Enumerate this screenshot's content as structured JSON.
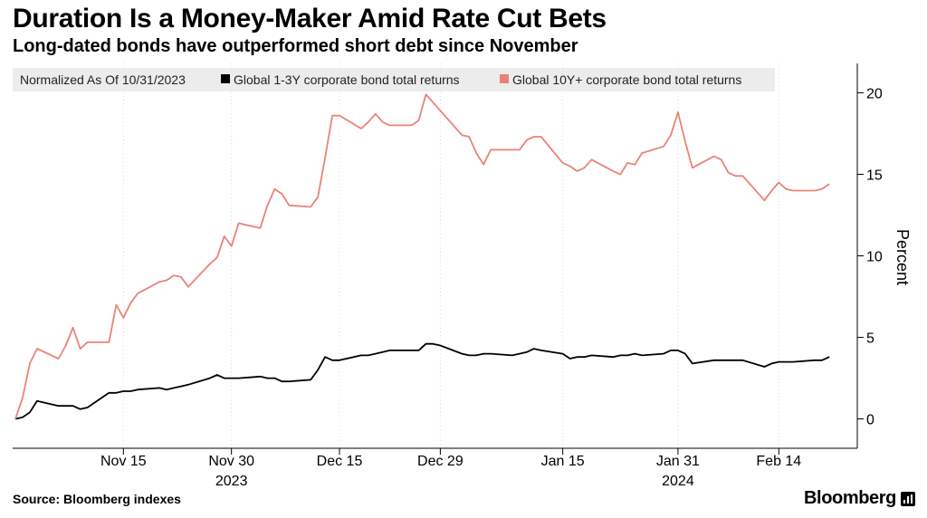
{
  "title": "Duration Is a Money-Maker Amid Rate Cut Bets",
  "subtitle": "Long-dated bonds have outperformed short debt since November",
  "source": "Source: Bloomberg indexes",
  "brand": "Bloomberg",
  "chart_data": {
    "type": "line",
    "legend": {
      "note": "Normalized As Of 10/31/2023",
      "placement": "top-left"
    },
    "ylabel": "Percent",
    "ylim": [
      -1.8,
      21.8
    ],
    "yticks": [
      0,
      5,
      10,
      15,
      20
    ],
    "ytick_labels": [
      "0",
      "5",
      "10",
      "15",
      "20"
    ],
    "x_start": "2023-10-31",
    "x_end": "2024-02-23",
    "xticks": [
      {
        "date": "2023-11-15",
        "label": "Nov 15",
        "sublabel": ""
      },
      {
        "date": "2023-11-30",
        "label": "Nov 30",
        "sublabel": "2023"
      },
      {
        "date": "2023-12-15",
        "label": "Dec 15",
        "sublabel": ""
      },
      {
        "date": "2023-12-29",
        "label": "Dec 29",
        "sublabel": ""
      },
      {
        "date": "2024-01-15",
        "label": "Jan 15",
        "sublabel": ""
      },
      {
        "date": "2024-01-31",
        "label": "Jan 31",
        "sublabel": "2024"
      },
      {
        "date": "2024-02-14",
        "label": "Feb 14",
        "sublabel": ""
      }
    ],
    "grid": "vertical dotted",
    "x": [
      "2023-10-31",
      "2023-11-01",
      "2023-11-02",
      "2023-11-03",
      "2023-11-06",
      "2023-11-07",
      "2023-11-08",
      "2023-11-09",
      "2023-11-10",
      "2023-11-13",
      "2023-11-14",
      "2023-11-15",
      "2023-11-16",
      "2023-11-17",
      "2023-11-20",
      "2023-11-21",
      "2023-11-22",
      "2023-11-23",
      "2023-11-24",
      "2023-11-27",
      "2023-11-28",
      "2023-11-29",
      "2023-11-30",
      "2023-12-01",
      "2023-12-04",
      "2023-12-05",
      "2023-12-06",
      "2023-12-07",
      "2023-12-08",
      "2023-12-11",
      "2023-12-12",
      "2023-12-13",
      "2023-12-14",
      "2023-12-15",
      "2023-12-18",
      "2023-12-19",
      "2023-12-20",
      "2023-12-21",
      "2023-12-22",
      "2023-12-25",
      "2023-12-26",
      "2023-12-27",
      "2023-12-28",
      "2023-12-29",
      "2024-01-01",
      "2024-01-02",
      "2024-01-03",
      "2024-01-04",
      "2024-01-05",
      "2024-01-08",
      "2024-01-09",
      "2024-01-10",
      "2024-01-11",
      "2024-01-12",
      "2024-01-15",
      "2024-01-16",
      "2024-01-17",
      "2024-01-18",
      "2024-01-19",
      "2024-01-22",
      "2024-01-23",
      "2024-01-24",
      "2024-01-25",
      "2024-01-26",
      "2024-01-29",
      "2024-01-30",
      "2024-01-31",
      "2024-02-01",
      "2024-02-02",
      "2024-02-05",
      "2024-02-06",
      "2024-02-07",
      "2024-02-08",
      "2024-02-09",
      "2024-02-12",
      "2024-02-13",
      "2024-02-14",
      "2024-02-15",
      "2024-02-16",
      "2024-02-19",
      "2024-02-20",
      "2024-02-21"
    ],
    "series": [
      {
        "name": "Global 1-3Y corporate bond total returns",
        "color": "#000000",
        "values": [
          0.0,
          0.1,
          0.4,
          1.1,
          0.8,
          0.8,
          0.8,
          0.6,
          0.7,
          1.6,
          1.6,
          1.7,
          1.7,
          1.8,
          1.9,
          1.8,
          1.9,
          2.0,
          2.1,
          2.5,
          2.7,
          2.5,
          2.5,
          2.5,
          2.6,
          2.5,
          2.5,
          2.3,
          2.3,
          2.4,
          3.0,
          3.8,
          3.6,
          3.6,
          3.9,
          3.9,
          4.0,
          4.1,
          4.2,
          4.2,
          4.2,
          4.6,
          4.6,
          4.5,
          4.0,
          3.9,
          3.9,
          4.0,
          4.0,
          3.9,
          4.0,
          4.1,
          4.3,
          4.2,
          4.0,
          3.7,
          3.8,
          3.8,
          3.9,
          3.8,
          3.9,
          3.9,
          4.0,
          3.9,
          4.0,
          4.2,
          4.2,
          4.0,
          3.4,
          3.6,
          3.6,
          3.6,
          3.6,
          3.6,
          3.2,
          3.4,
          3.5,
          3.5,
          3.5,
          3.6,
          3.6,
          3.8
        ]
      },
      {
        "name": "Global 10Y+ corporate bond total returns",
        "color": "#e98378",
        "values": [
          0.0,
          1.3,
          3.4,
          4.3,
          3.7,
          4.5,
          5.6,
          4.3,
          4.7,
          4.7,
          7.0,
          6.2,
          7.1,
          7.7,
          8.4,
          8.5,
          8.8,
          8.7,
          8.1,
          9.5,
          9.9,
          11.2,
          10.6,
          12.0,
          11.7,
          13.1,
          14.1,
          13.8,
          13.1,
          13.0,
          13.6,
          16.0,
          18.6,
          18.6,
          17.8,
          18.2,
          18.7,
          18.2,
          18.0,
          18.0,
          18.3,
          19.9,
          19.4,
          18.9,
          17.4,
          17.3,
          16.3,
          15.6,
          16.5,
          16.5,
          16.5,
          17.1,
          17.3,
          17.3,
          15.7,
          15.5,
          15.2,
          15.4,
          15.9,
          15.2,
          15.0,
          15.7,
          15.6,
          16.3,
          16.7,
          17.4,
          18.8,
          17.0,
          15.4,
          16.1,
          15.9,
          15.1,
          14.9,
          14.9,
          13.4,
          14.0,
          14.5,
          14.1,
          14.0,
          14.0,
          14.1,
          14.4
        ]
      }
    ]
  }
}
